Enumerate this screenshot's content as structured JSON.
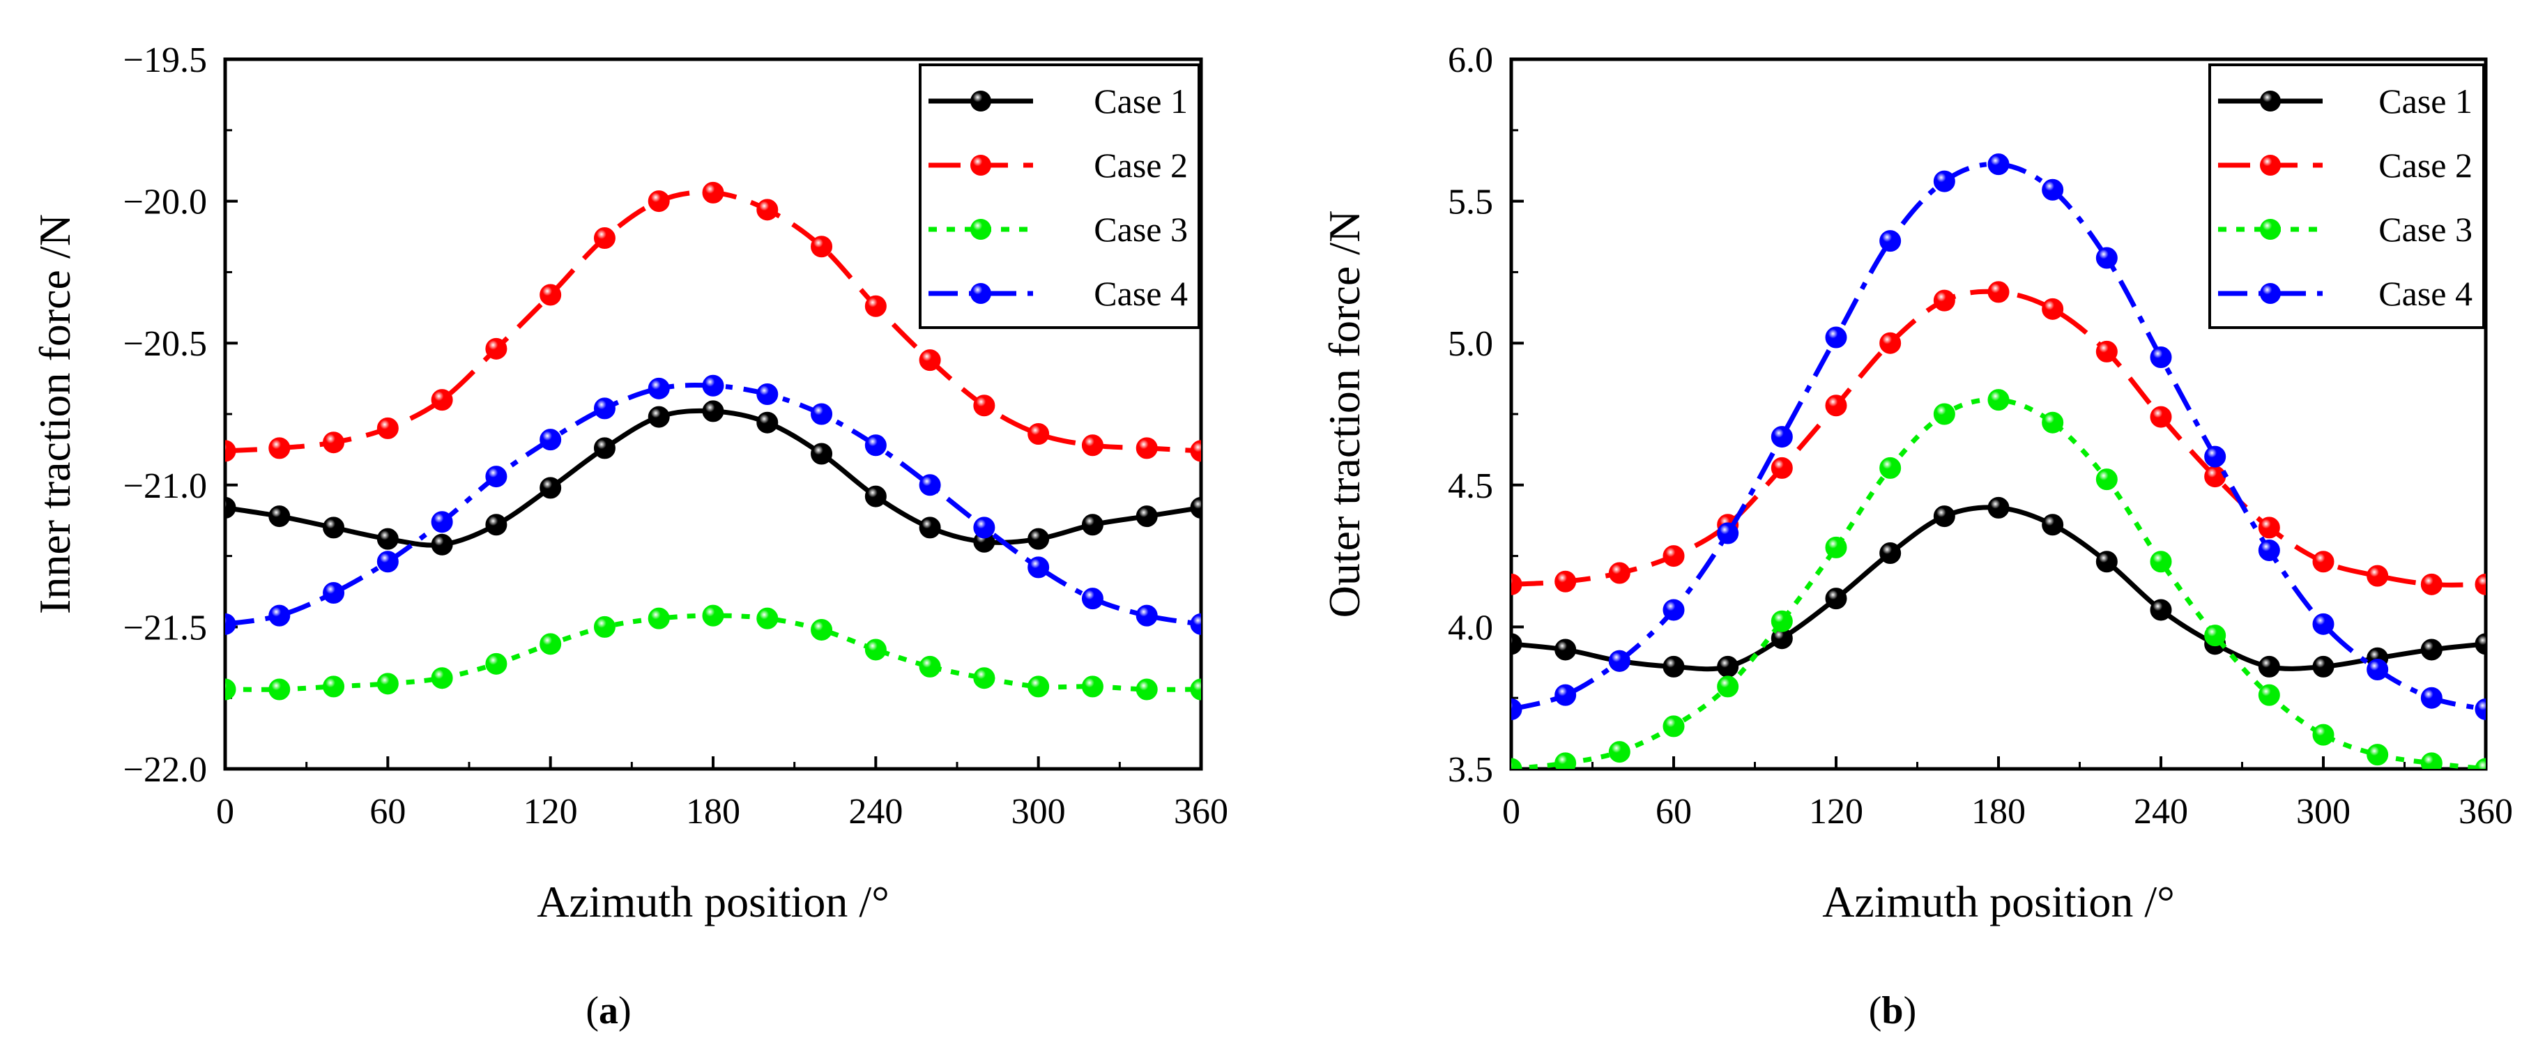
{
  "chart_data": [
    {
      "type": "line",
      "panel_label": "a",
      "xlabel": "Azimuth position /°",
      "ylabel": "Inner traction force /N",
      "xlim": [
        0,
        360
      ],
      "ylim": [
        -22.0,
        -19.5
      ],
      "xticks": [
        "0",
        "60",
        "120",
        "180",
        "240",
        "300",
        "360"
      ],
      "yticks": [
        "−22.0",
        "−21.5",
        "−21.0",
        "−20.5",
        "−20.0",
        "−19.5"
      ],
      "legend_position": "top-right",
      "x": [
        0,
        20,
        40,
        60,
        80,
        100,
        120,
        140,
        160,
        180,
        200,
        220,
        240,
        260,
        280,
        300,
        320,
        340,
        360
      ],
      "series": [
        {
          "name": "Case 1",
          "color": "#000000",
          "dash": "solid",
          "values": [
            -21.08,
            -21.11,
            -21.15,
            -21.19,
            -21.21,
            -21.14,
            -21.01,
            -20.87,
            -20.76,
            -20.74,
            -20.78,
            -20.89,
            -21.04,
            -21.15,
            -21.2,
            -21.19,
            -21.14,
            -21.11,
            -21.08
          ]
        },
        {
          "name": "Case 2",
          "color": "#ff0000",
          "dash": "dash",
          "values": [
            -20.88,
            -20.87,
            -20.85,
            -20.8,
            -20.7,
            -20.52,
            -20.33,
            -20.13,
            -20.0,
            -19.97,
            -20.03,
            -20.16,
            -20.37,
            -20.56,
            -20.72,
            -20.82,
            -20.86,
            -20.87,
            -20.88
          ]
        },
        {
          "name": "Case 3",
          "color": "#00ee00",
          "dash": "dot",
          "values": [
            -21.72,
            -21.72,
            -21.71,
            -21.7,
            -21.68,
            -21.63,
            -21.56,
            -21.5,
            -21.47,
            -21.46,
            -21.47,
            -21.51,
            -21.58,
            -21.64,
            -21.68,
            -21.71,
            -21.71,
            -21.72,
            -21.72
          ]
        },
        {
          "name": "Case 4",
          "color": "#0000ff",
          "dash": "dashdot",
          "values": [
            -21.49,
            -21.46,
            -21.38,
            -21.27,
            -21.13,
            -20.97,
            -20.84,
            -20.73,
            -20.66,
            -20.65,
            -20.68,
            -20.75,
            -20.86,
            -21.0,
            -21.15,
            -21.29,
            -21.4,
            -21.46,
            -21.49
          ]
        }
      ]
    },
    {
      "type": "line",
      "panel_label": "b",
      "xlabel": "Azimuth position /°",
      "ylabel": "Outer traction force /N",
      "xlim": [
        0,
        360
      ],
      "ylim": [
        3.5,
        6.0
      ],
      "xticks": [
        "0",
        "60",
        "120",
        "180",
        "240",
        "300",
        "360"
      ],
      "yticks": [
        "3.5",
        "4.0",
        "4.5",
        "5.0",
        "5.5",
        "6.0"
      ],
      "legend_position": "top-right",
      "x": [
        0,
        20,
        40,
        60,
        80,
        100,
        120,
        140,
        160,
        180,
        200,
        220,
        240,
        260,
        280,
        300,
        320,
        340,
        360
      ],
      "series": [
        {
          "name": "Case 1",
          "color": "#000000",
          "dash": "solid",
          "values": [
            3.94,
            3.92,
            3.88,
            3.86,
            3.86,
            3.96,
            4.1,
            4.26,
            4.39,
            4.42,
            4.36,
            4.23,
            4.06,
            3.94,
            3.86,
            3.86,
            3.89,
            3.92,
            3.94
          ]
        },
        {
          "name": "Case 2",
          "color": "#ff0000",
          "dash": "dash",
          "values": [
            4.15,
            4.16,
            4.19,
            4.25,
            4.36,
            4.56,
            4.78,
            5.0,
            5.15,
            5.18,
            5.12,
            4.97,
            4.74,
            4.53,
            4.35,
            4.23,
            4.18,
            4.15,
            4.15
          ]
        },
        {
          "name": "Case 3",
          "color": "#00ee00",
          "dash": "dot",
          "values": [
            3.5,
            3.52,
            3.56,
            3.65,
            3.79,
            4.02,
            4.28,
            4.56,
            4.75,
            4.8,
            4.72,
            4.52,
            4.23,
            3.97,
            3.76,
            3.62,
            3.55,
            3.52,
            3.5
          ]
        },
        {
          "name": "Case 4",
          "color": "#0000ff",
          "dash": "dashdot",
          "values": [
            3.71,
            3.76,
            3.88,
            4.06,
            4.33,
            4.67,
            5.02,
            5.36,
            5.57,
            5.63,
            5.54,
            5.3,
            4.95,
            4.6,
            4.27,
            4.01,
            3.85,
            3.75,
            3.71
          ]
        }
      ]
    }
  ]
}
